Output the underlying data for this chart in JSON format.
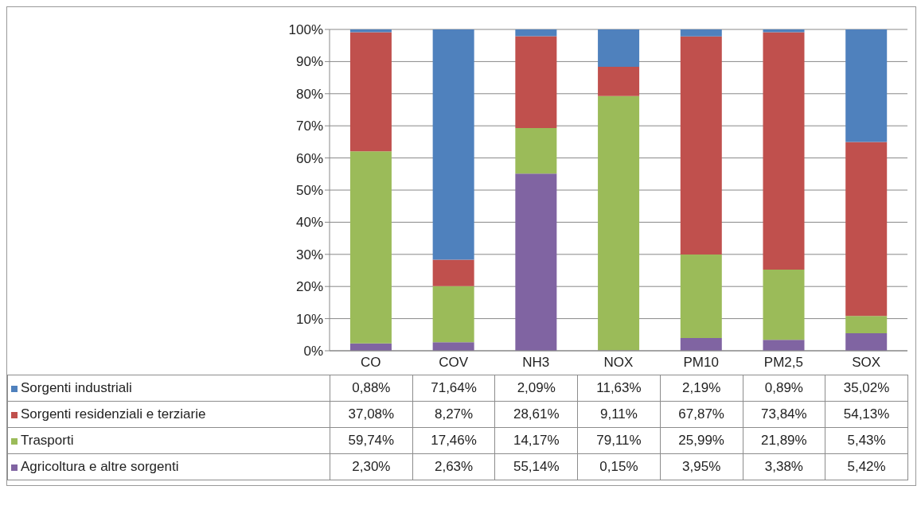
{
  "chart_data": {
    "type": "bar",
    "stacked": true,
    "categories": [
      "CO",
      "COV",
      "NH3",
      "NOX",
      "PM10",
      "PM2,5",
      "SOX"
    ],
    "series": [
      {
        "name": "Agricoltura e altre sorgenti",
        "color": "#8064a2",
        "values": [
          2.3,
          2.63,
          55.14,
          0.15,
          3.95,
          3.38,
          5.42
        ],
        "value_labels": [
          "2,30%",
          "2,63%",
          "55,14%",
          "0,15%",
          "3,95%",
          "3,38%",
          "5,42%"
        ]
      },
      {
        "name": "Trasporti",
        "color": "#9bbb59",
        "values": [
          59.74,
          17.46,
          14.17,
          79.11,
          25.99,
          21.89,
          5.43
        ],
        "value_labels": [
          "59,74%",
          "17,46%",
          "14,17%",
          "79,11%",
          "25,99%",
          "21,89%",
          "5,43%"
        ]
      },
      {
        "name": "Sorgenti residenziali e terziarie",
        "color": "#c0504d",
        "values": [
          37.08,
          8.27,
          28.61,
          9.11,
          67.87,
          73.84,
          54.13
        ],
        "value_labels": [
          "37,08%",
          "8,27%",
          "28,61%",
          "9,11%",
          "67,87%",
          "73,84%",
          "54,13%"
        ]
      },
      {
        "name": "Sorgenti industriali",
        "color": "#4f81bd",
        "values": [
          0.88,
          71.64,
          2.09,
          11.63,
          2.19,
          0.89,
          35.02
        ],
        "value_labels": [
          "0,88%",
          "71,64%",
          "2,09%",
          "11,63%",
          "2,19%",
          "0,89%",
          "35,02%"
        ]
      }
    ],
    "ylim": [
      0,
      100
    ],
    "yticks": [
      {
        "value": 0,
        "label": "0%"
      },
      {
        "value": 10,
        "label": "10%"
      },
      {
        "value": 20,
        "label": "20%"
      },
      {
        "value": 30,
        "label": "30%"
      },
      {
        "value": 40,
        "label": "40%"
      },
      {
        "value": 50,
        "label": "50%"
      },
      {
        "value": 60,
        "label": "60%"
      },
      {
        "value": 70,
        "label": "70%"
      },
      {
        "value": 80,
        "label": "80%"
      },
      {
        "value": 90,
        "label": "90%"
      },
      {
        "value": 100,
        "label": "100%"
      }
    ],
    "grid": "y",
    "legend": "bottom"
  }
}
